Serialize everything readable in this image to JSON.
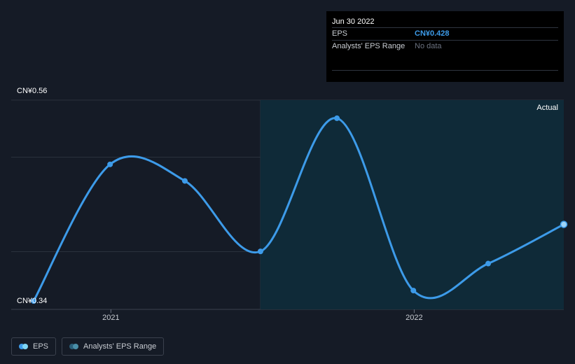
{
  "tooltip": {
    "date": "Jun 30 2022",
    "eps_label": "EPS",
    "eps_value": "CN¥0.428",
    "range_label": "Analysts' EPS Range",
    "range_value": "No data"
  },
  "region_label": "Actual",
  "legend": [
    {
      "label": "EPS",
      "color_a": "#3d9be9",
      "color_b": "#7fd6f5"
    },
    {
      "label": "Analysts' EPS Range",
      "color_a": "#2a5f7a",
      "color_b": "#4a8fa8"
    }
  ],
  "colors": {
    "line": "#3d9be9",
    "background": "#151b26",
    "actual_region": "#0f2a38"
  },
  "chart_data": {
    "type": "line",
    "title": "",
    "xlabel": "",
    "ylabel": "",
    "y_tick_labels": [
      "CN¥0.56",
      "CN¥0.34"
    ],
    "x_tick_labels": [
      "2021",
      "2022"
    ],
    "ylim": [
      0.34,
      0.56
    ],
    "grid": true,
    "series": [
      {
        "name": "EPS",
        "x": [
          "2020-09-30",
          "2020-12-31",
          "2021-03-31",
          "2021-06-30",
          "2021-09-30",
          "2021-12-31",
          "2022-03-31",
          "2022-06-30"
        ],
        "values": [
          0.34,
          0.497,
          0.478,
          0.397,
          0.55,
          0.352,
          0.383,
          0.428
        ]
      }
    ],
    "actual_region_start": "2021-06-30"
  }
}
